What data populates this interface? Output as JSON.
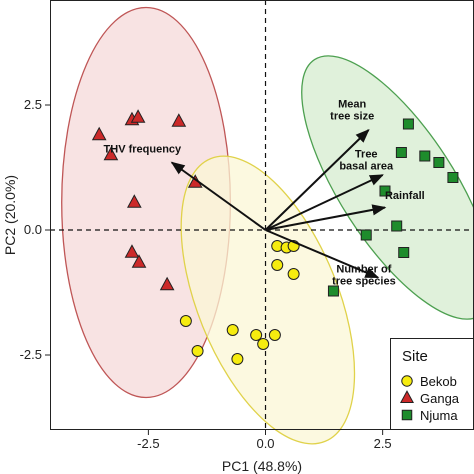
{
  "chart_data": {
    "type": "scatter",
    "xlabel": "PC1 (48.8%)",
    "ylabel": "PC2 (20.0%)",
    "xlim": [
      -4.6,
      4.45
    ],
    "ylim": [
      -4.0,
      4.6
    ],
    "x_ticks": [
      -2.5,
      0.0,
      2.5
    ],
    "x_tick_labels": [
      "-2.5",
      "0.0",
      "2.5"
    ],
    "y_ticks": [
      -2.5,
      0.0,
      2.5
    ],
    "y_tick_labels": [
      "-2.5",
      "0.0",
      "2.5"
    ],
    "grid": false,
    "reference_lines": {
      "x": 0,
      "y": 0,
      "style": "dashed"
    },
    "legend": {
      "title": "Site",
      "position": "bottom-right"
    },
    "series": [
      {
        "name": "Bekob",
        "marker": "circle",
        "color": "#f6ec0f",
        "points": [
          [
            0.25,
            -0.32
          ],
          [
            0.45,
            -0.35
          ],
          [
            0.6,
            -0.32
          ],
          [
            0.25,
            -0.7
          ],
          [
            0.6,
            -0.88
          ],
          [
            -1.7,
            -1.82
          ],
          [
            -1.45,
            -2.42
          ],
          [
            -0.7,
            -2.0
          ],
          [
            -0.2,
            -2.1
          ],
          [
            0.2,
            -2.1
          ],
          [
            -0.05,
            -2.28
          ],
          [
            -0.6,
            -2.58
          ]
        ]
      },
      {
        "name": "Ganga",
        "marker": "triangle",
        "color": "#cc2929",
        "points": [
          [
            -3.55,
            1.9
          ],
          [
            -2.85,
            2.2
          ],
          [
            -2.72,
            2.25
          ],
          [
            -1.85,
            2.17
          ],
          [
            -3.3,
            1.5
          ],
          [
            -1.5,
            0.95
          ],
          [
            -2.8,
            0.55
          ],
          [
            -2.85,
            -0.45
          ],
          [
            -2.7,
            -0.65
          ],
          [
            -2.1,
            -1.1
          ]
        ]
      },
      {
        "name": "Njuma",
        "marker": "square",
        "color": "#1e8c2c",
        "points": [
          [
            3.05,
            2.12
          ],
          [
            3.4,
            1.48
          ],
          [
            2.9,
            1.55
          ],
          [
            3.7,
            1.35
          ],
          [
            4.0,
            1.05
          ],
          [
            2.55,
            0.78
          ],
          [
            2.8,
            0.08
          ],
          [
            2.15,
            -0.1
          ],
          [
            2.95,
            -0.45
          ],
          [
            1.45,
            -1.22
          ]
        ]
      }
    ],
    "ellipses": [
      {
        "group": "Ganga",
        "center": [
          -2.55,
          0.55
        ],
        "semi_axes": [
          1.8,
          3.9
        ],
        "angle_deg": 0,
        "fill": "#f6d9da",
        "stroke": "#bf5656"
      },
      {
        "group": "Bekob",
        "center": [
          0.05,
          -1.4
        ],
        "semi_axes": [
          1.5,
          3.05
        ],
        "angle_deg": -22,
        "fill": "#fbf7d6",
        "stroke": "#e0d24a"
      },
      {
        "group": "Njuma",
        "center": [
          2.82,
          0.85
        ],
        "semi_axes": [
          1.22,
          3.05
        ],
        "angle_deg": -33,
        "fill": "#d6eccf",
        "stroke": "#4da050"
      }
    ],
    "loadings": [
      {
        "label_lines": [
          "THV frequency"
        ],
        "end": [
          -2.0,
          1.35
        ],
        "label_at": [
          -1.8,
          1.55
        ],
        "anchor": "end"
      },
      {
        "label_lines": [
          "Mean",
          "tree size"
        ],
        "end": [
          2.2,
          2.0
        ],
        "label_at": [
          1.85,
          2.45
        ],
        "anchor": "middle"
      },
      {
        "label_lines": [
          "Tree",
          "basal area"
        ],
        "end": [
          2.5,
          1.1
        ],
        "label_at": [
          2.15,
          1.45
        ],
        "anchor": "middle"
      },
      {
        "label_lines": [
          "Rainfall"
        ],
        "end": [
          2.55,
          0.45
        ],
        "label_at": [
          2.55,
          0.62
        ],
        "anchor": "start"
      },
      {
        "label_lines": [
          "Number of",
          "tree species"
        ],
        "end": [
          2.4,
          -0.95
        ],
        "label_at": [
          2.1,
          -0.85
        ],
        "anchor": "middle"
      }
    ]
  }
}
